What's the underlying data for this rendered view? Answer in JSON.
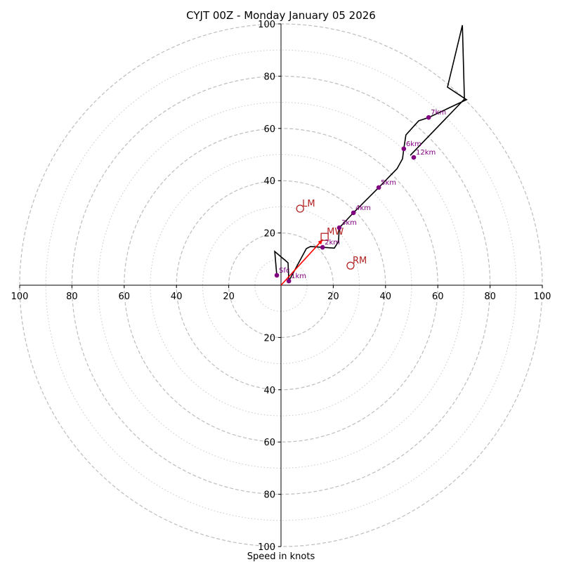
{
  "chart_data": {
    "type": "line",
    "subtype": "hodograph",
    "title": "CYJT 00Z - Monday January 05 2026",
    "xlabel": "Speed in knots",
    "ylabel": "",
    "xlim": [
      -100,
      100
    ],
    "ylim": [
      -100,
      100
    ],
    "rings": {
      "major": [
        20,
        40,
        60,
        80,
        100
      ],
      "minor": [
        10,
        30,
        50,
        70,
        90
      ],
      "major_style": "dashed",
      "minor_style": "dotted"
    },
    "x_ticks": [
      {
        "value": -100,
        "label": "100"
      },
      {
        "value": -80,
        "label": "80"
      },
      {
        "value": -60,
        "label": "60"
      },
      {
        "value": -40,
        "label": "40"
      },
      {
        "value": -20,
        "label": "20"
      },
      {
        "value": 20,
        "label": "20"
      },
      {
        "value": 40,
        "label": "40"
      },
      {
        "value": 60,
        "label": "60"
      },
      {
        "value": 80,
        "label": "80"
      },
      {
        "value": 100,
        "label": "100"
      }
    ],
    "y_ticks": [
      {
        "value": 100,
        "label": "100"
      },
      {
        "value": 80,
        "label": "80"
      },
      {
        "value": 60,
        "label": "60"
      },
      {
        "value": 40,
        "label": "40"
      },
      {
        "value": 20,
        "label": "20"
      },
      {
        "value": -20,
        "label": "20"
      },
      {
        "value": -40,
        "label": "40"
      },
      {
        "value": -60,
        "label": "60"
      },
      {
        "value": -80,
        "label": "80"
      },
      {
        "value": -100,
        "label": "100"
      }
    ],
    "hodograph_path": {
      "color": "#000000",
      "u": [
        -1.6,
        -2.4,
        2.7,
        3.0,
        9.7,
        11.3,
        15.9,
        20.4,
        22.0,
        22.3,
        27.7,
        37.4,
        44.4,
        46.5,
        47.0,
        47.8,
        52.7,
        56.5,
        71.0,
        63.7,
        69.4,
        70.2,
        49.5
      ],
      "v": [
        3.8,
        12.9,
        8.6,
        1.6,
        14.0,
        14.8,
        14.5,
        14.2,
        16.7,
        22.0,
        27.7,
        37.4,
        44.6,
        48.4,
        52.2,
        57.5,
        62.9,
        64.2,
        71.0,
        75.8,
        99.5,
        71.2,
        49.7
      ]
    },
    "height_markers": {
      "color": "#800080",
      "points": [
        {
          "label": "Sfc",
          "u": -1.6,
          "v": 3.8
        },
        {
          "label": "1km",
          "u": 3.0,
          "v": 1.6
        },
        {
          "label": "2km",
          "u": 15.9,
          "v": 14.5
        },
        {
          "label": "3km",
          "u": 22.3,
          "v": 22.0
        },
        {
          "label": "4km",
          "u": 27.7,
          "v": 27.7
        },
        {
          "label": "5km",
          "u": 37.4,
          "v": 37.4
        },
        {
          "label": "6km",
          "u": 47.0,
          "v": 52.2
        },
        {
          "label": "7km",
          "u": 56.5,
          "v": 64.2
        },
        {
          "label": "12km",
          "u": 50.8,
          "v": 48.9
        }
      ]
    },
    "storm_motion": {
      "color": "#b22222",
      "LM": {
        "label": "LM",
        "u": 7.3,
        "v": 29.3
      },
      "RM": {
        "label": "RM",
        "u": 26.6,
        "v": 7.5
      },
      "MW": {
        "label": "MW",
        "u": 16.7,
        "v": 18.5
      }
    },
    "shear_vector": {
      "color": "#ff0000",
      "from": {
        "u": 0,
        "v": 0
      },
      "to": {
        "u": 16.0,
        "v": 17.5
      }
    }
  }
}
